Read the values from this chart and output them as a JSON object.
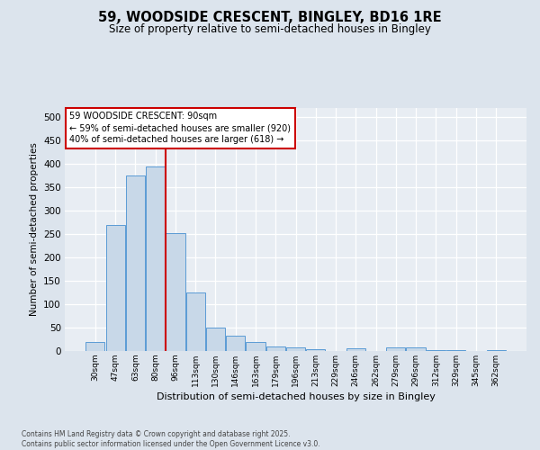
{
  "title_line1": "59, WOODSIDE CRESCENT, BINGLEY, BD16 1RE",
  "title_line2": "Size of property relative to semi-detached houses in Bingley",
  "xlabel": "Distribution of semi-detached houses by size in Bingley",
  "ylabel": "Number of semi-detached properties",
  "categories": [
    "30sqm",
    "47sqm",
    "63sqm",
    "80sqm",
    "96sqm",
    "113sqm",
    "130sqm",
    "146sqm",
    "163sqm",
    "179sqm",
    "196sqm",
    "213sqm",
    "229sqm",
    "246sqm",
    "262sqm",
    "279sqm",
    "296sqm",
    "312sqm",
    "329sqm",
    "345sqm",
    "362sqm"
  ],
  "values": [
    20,
    270,
    375,
    395,
    253,
    125,
    50,
    33,
    20,
    9,
    7,
    4,
    0,
    5,
    0,
    7,
    7,
    2,
    2,
    0,
    2
  ],
  "bar_color": "#c8d8e8",
  "bar_edge_color": "#5b9bd5",
  "red_line_color": "#cc0000",
  "red_line_x": 3.5,
  "annotation_title": "59 WOODSIDE CRESCENT: 90sqm",
  "annotation_line1": "← 59% of semi-detached houses are smaller (920)",
  "annotation_line2": "40% of semi-detached houses are larger (618) →",
  "footer_line1": "Contains HM Land Registry data © Crown copyright and database right 2025.",
  "footer_line2": "Contains public sector information licensed under the Open Government Licence v3.0.",
  "ylim": [
    0,
    520
  ],
  "yticks": [
    0,
    50,
    100,
    150,
    200,
    250,
    300,
    350,
    400,
    450,
    500
  ],
  "bg_color": "#dce4ed",
  "plot_bg_color": "#e8edf3",
  "grid_color": "#ffffff",
  "title1_fontsize": 10.5,
  "title2_fontsize": 8.5,
  "ylabel_fontsize": 7.5,
  "xlabel_fontsize": 8.0,
  "tick_fontsize": 7.5,
  "xtick_fontsize": 6.5,
  "ann_fontsize": 7.0,
  "footer_fontsize": 5.5
}
